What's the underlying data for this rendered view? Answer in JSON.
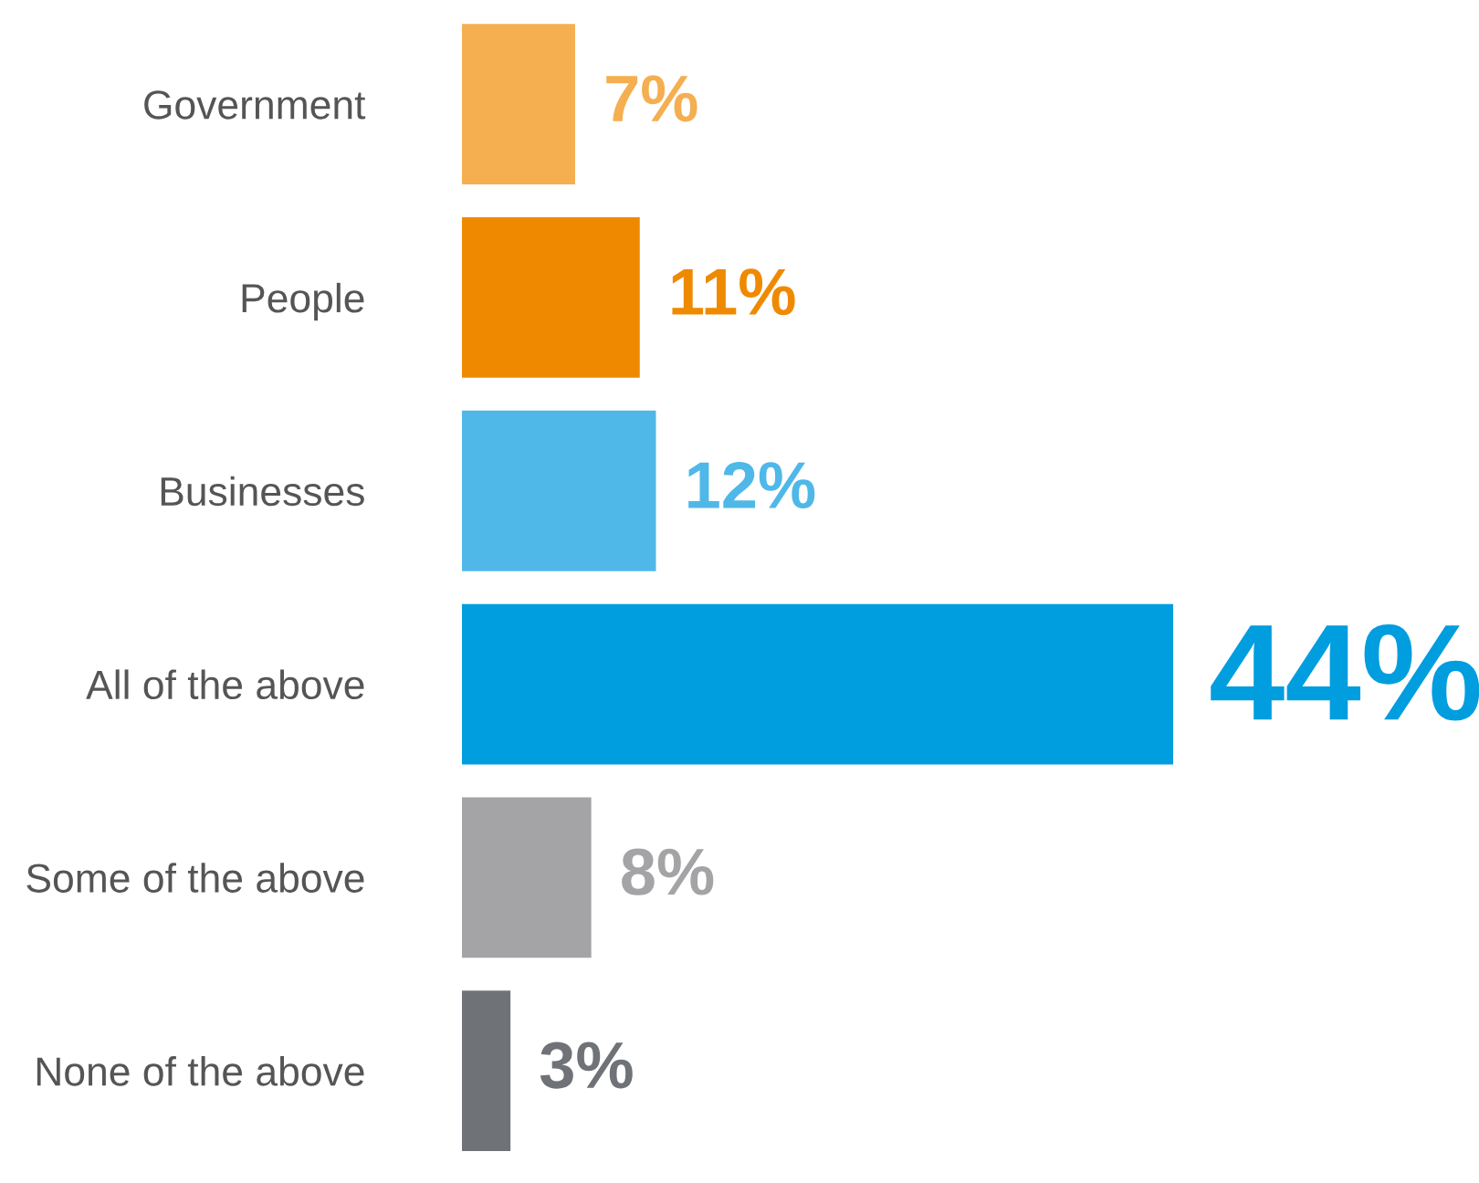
{
  "chart_data": {
    "type": "bar",
    "orientation": "horizontal",
    "categories": [
      "Government",
      "People",
      "Businesses",
      "All of the above",
      "Some of the above",
      "None of the above"
    ],
    "values": [
      7,
      11,
      12,
      44,
      8,
      3
    ],
    "colors": [
      "#f5ae50",
      "#ef8a00",
      "#4fb8e8",
      "#009ddf",
      "#a4a4a6",
      "#6f7277"
    ],
    "value_labels": [
      "7%",
      "11%",
      "12%",
      "44%",
      "8%",
      "3%"
    ],
    "grid": false,
    "legend": false
  }
}
